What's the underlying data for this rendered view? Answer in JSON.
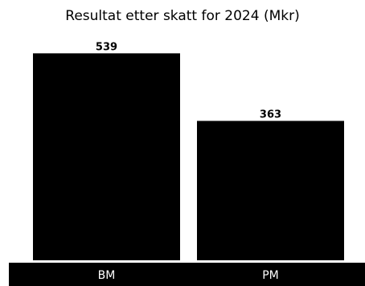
{
  "chart_data": {
    "type": "bar",
    "title": "Resultat etter skatt for 2024 (Mkr)",
    "categories": [
      "BM",
      "PM"
    ],
    "values": [
      539,
      363
    ],
    "ylim": [
      0,
      590
    ],
    "grid": false,
    "legend": "none",
    "colors": {
      "bar": "#000000",
      "axis_band": "#000000",
      "axis_label": "#ffffff",
      "data_label": "#000000",
      "title": "#000000",
      "background": "#ffffff"
    }
  }
}
